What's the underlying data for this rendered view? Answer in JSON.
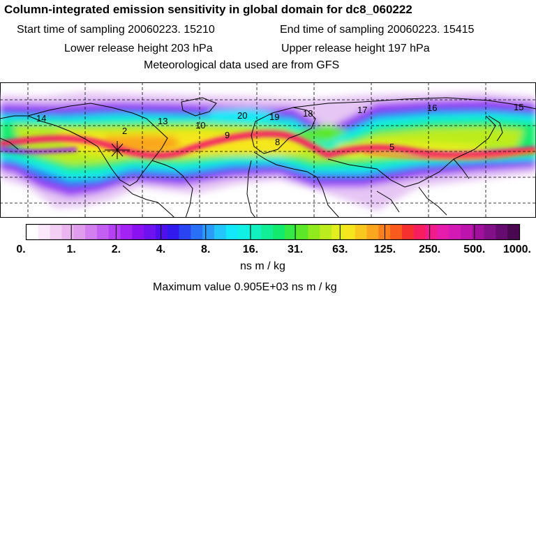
{
  "header": {
    "title": "Column-integrated emission sensitivity in global domain for dc8_060222",
    "start_time": "Start time of sampling 20060223. 15210",
    "end_time": "End time of sampling 20060223. 15415",
    "lower_height": "Lower release height  203 hPa",
    "upper_height": "Upper release height  197 hPa",
    "met_data": "Meteorological data used are from GFS"
  },
  "map": {
    "day_labels": [
      "14",
      "2",
      "13",
      "10",
      "20",
      "19",
      "18",
      "9",
      "8",
      "17",
      "16",
      "15",
      "5"
    ]
  },
  "colorbar": {
    "tick_labels": [
      "0.",
      "1.",
      "2.",
      "4.",
      "8.",
      "16.",
      "31.",
      "63.",
      "125.",
      "250.",
      "500.",
      "1000."
    ],
    "colors": [
      "#ffffff",
      "#fbe8fb",
      "#f3d0f3",
      "#ebb6ef",
      "#e09ced",
      "#d27ff0",
      "#c45ff3",
      "#b640f4",
      "#a322f4",
      "#8a12f1",
      "#6f12f0",
      "#5010ee",
      "#3219ee",
      "#2a44f2",
      "#2a70f6",
      "#2a9cf8",
      "#22c6fa",
      "#12e8fa",
      "#12f0e6",
      "#12f0c0",
      "#12ee96",
      "#12ea6e",
      "#34e846",
      "#5ce828",
      "#90ea1e",
      "#bcec1e",
      "#e2ee1e",
      "#f6e61e",
      "#f8c81e",
      "#faa61e",
      "#fa7e1e",
      "#fa5a1e",
      "#f6302e",
      "#f61e5e",
      "#f01c8c",
      "#e61cac",
      "#d41ab4",
      "#bc14ac",
      "#a0109c",
      "#821088",
      "#660c70",
      "#4a0850"
    ],
    "units": "ns m / kg"
  },
  "footer": {
    "max_value": "Maximum value  0.905E+03 ns m / kg"
  }
}
